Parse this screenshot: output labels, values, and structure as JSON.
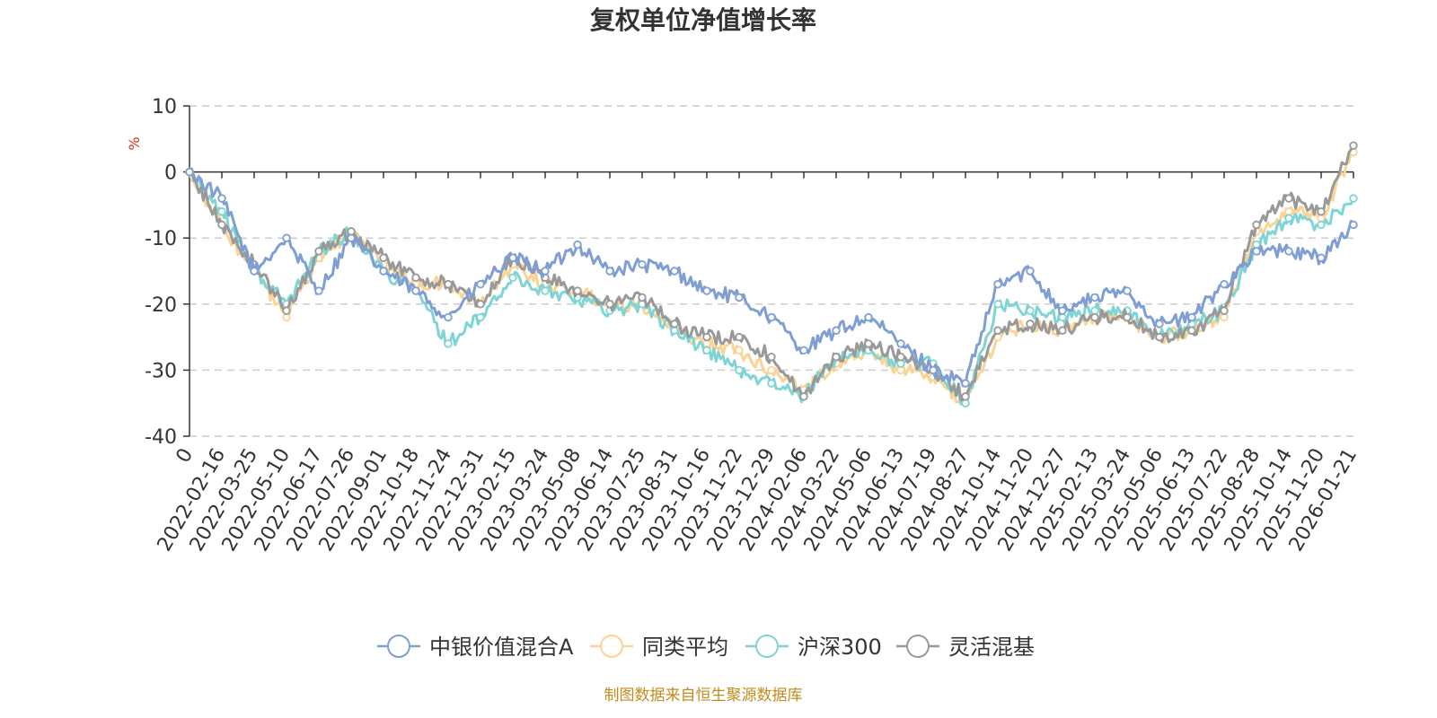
{
  "chart_data": {
    "type": "line",
    "title": "复权单位净值增长率",
    "ylabel": "%",
    "ylim": [
      -40,
      10
    ],
    "y_ticks": [
      10,
      0,
      -10,
      -20,
      -30,
      -40
    ],
    "grid": true,
    "legend_position": "bottom",
    "x": [
      "0",
      "2022-02-16",
      "2022-03-25",
      "2022-05-10",
      "2022-06-17",
      "2022-07-26",
      "2022-09-01",
      "2022-10-18",
      "2022-11-24",
      "2022-12-31",
      "2023-02-15",
      "2023-03-24",
      "2023-05-08",
      "2023-06-14",
      "2023-07-25",
      "2023-08-31",
      "2023-10-16",
      "2023-11-22",
      "2023-12-29",
      "2024-02-06",
      "2024-03-22",
      "2024-05-06",
      "2024-06-13",
      "2024-07-19",
      "2024-08-27",
      "2024-10-14",
      "2024-11-20",
      "2024-12-27",
      "2025-02-13",
      "2025-03-24",
      "2025-05-06",
      "2025-06-13",
      "2025-07-22",
      "2025-08-28",
      "2025-10-14",
      "2025-11-20",
      "2026-01-21"
    ],
    "series": [
      {
        "name": "中银价值混合A",
        "color": "#7f9fd4",
        "values": [
          0,
          -4,
          -15,
          -10,
          -18,
          -10,
          -15,
          -18,
          -22,
          -17,
          -13,
          -15,
          -11,
          -15,
          -14,
          -15,
          -18,
          -19,
          -22,
          -27,
          -24,
          -22,
          -26,
          -30,
          -32,
          -17,
          -15,
          -21,
          -19,
          -18,
          -23,
          -22,
          -17,
          -12,
          -12,
          -13,
          -8
        ]
      },
      {
        "name": "同类平均",
        "color": "#fbd394",
        "values": [
          0,
          -8,
          -15,
          -22,
          -13,
          -9,
          -14,
          -17,
          -17,
          -20,
          -14,
          -17,
          -18,
          -20,
          -20,
          -24,
          -26,
          -27,
          -30,
          -33,
          -29,
          -27,
          -30,
          -31,
          -35,
          -25,
          -23,
          -24,
          -22,
          -22,
          -25,
          -24,
          -22,
          -9,
          -6,
          -7,
          3
        ]
      },
      {
        "name": "沪深300",
        "color": "#7fd4d4",
        "values": [
          0,
          -6,
          -15,
          -20,
          -12,
          -9,
          -15,
          -18,
          -26,
          -22,
          -16,
          -18,
          -19,
          -21,
          -20,
          -24,
          -27,
          -30,
          -32,
          -34,
          -28,
          -27,
          -29,
          -29,
          -35,
          -20,
          -21,
          -22,
          -21,
          -21,
          -25,
          -23,
          -21,
          -11,
          -7,
          -8,
          -4
        ]
      },
      {
        "name": "灵活混基",
        "color": "#999999",
        "values": [
          0,
          -8,
          -14,
          -21,
          -12,
          -9,
          -13,
          -16,
          -17,
          -20,
          -13,
          -16,
          -18,
          -20,
          -19,
          -23,
          -25,
          -25,
          -28,
          -34,
          -28,
          -26,
          -28,
          -30,
          -34,
          -24,
          -23,
          -24,
          -22,
          -22,
          -25,
          -24,
          -21,
          -8,
          -4,
          -6,
          4
        ]
      }
    ]
  },
  "source": "制图数据来自恒生聚源数据库"
}
